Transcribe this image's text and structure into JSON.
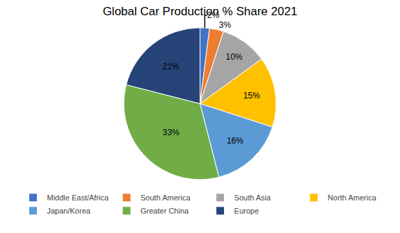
{
  "chart_data": {
    "type": "pie",
    "title": "Global Car Production % Share 2021",
    "categories": [
      "Middle East/Africa",
      "South America",
      "South Asia",
      "North America",
      "Japan/Korea",
      "Greater China",
      "Europe"
    ],
    "values": [
      2,
      3,
      10,
      15,
      16,
      33,
      21
    ],
    "value_labels": [
      "2%",
      "3%",
      "10%",
      "15%",
      "16%",
      "33%",
      "21%"
    ],
    "colors": [
      "#4472C4",
      "#ED7D31",
      "#A5A5A5",
      "#FFC000",
      "#5B9BD5",
      "#70AD47",
      "#264478"
    ],
    "data_labels": true,
    "legend": "bottom"
  }
}
